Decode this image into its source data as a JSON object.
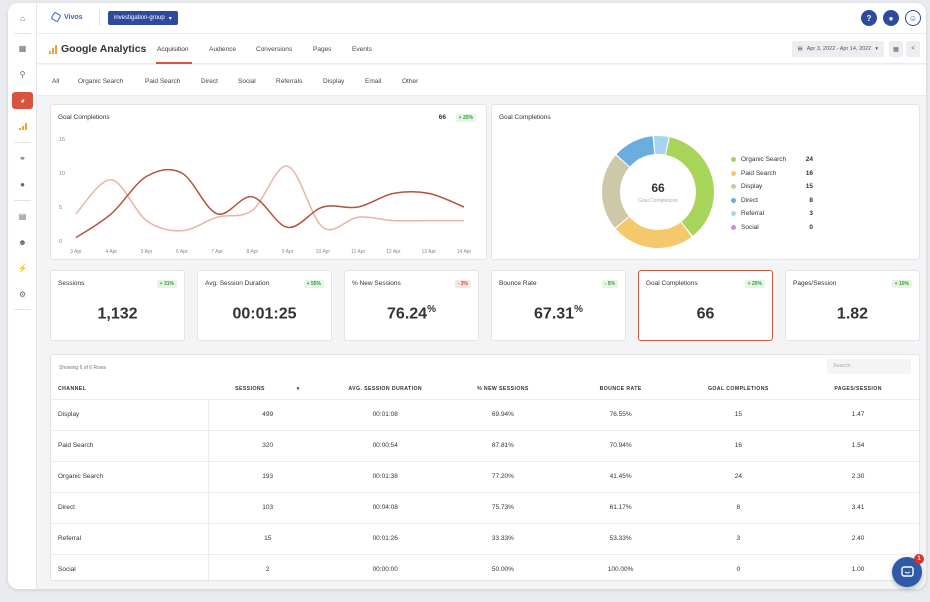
{
  "app": {
    "brand": "Vivos",
    "group": "investigation-group"
  },
  "colors": {
    "accent": "#d9533d",
    "navy": "#2e4a9e",
    "line_dark": "#b5523d",
    "line_light": "#e8b4a6"
  },
  "sidebar": {
    "items": [
      {
        "icon": "home-icon"
      },
      {
        "icon": "grid-icon"
      },
      {
        "icon": "search-icon"
      },
      {
        "icon": "pie-chart-icon",
        "active": true
      },
      {
        "icon": "bar-chart-icon"
      },
      {
        "icon": "link-icon"
      },
      {
        "icon": "location-icon"
      },
      {
        "icon": "document-icon"
      },
      {
        "icon": "user-icon"
      },
      {
        "icon": "plug-icon"
      },
      {
        "icon": "gear-icon"
      }
    ]
  },
  "header": {
    "title": "Google Analytics",
    "tabs": [
      "Acquisition",
      "Audience",
      "Conversions",
      "Pages",
      "Events"
    ],
    "active_tab": "Acquisition",
    "date_range": "Apr 3, 2022 - Apr 14, 2022"
  },
  "subtabs": [
    "All",
    "Organic Search",
    "Paid Search",
    "Direct",
    "Social",
    "Referrals",
    "Display",
    "Email",
    "Other"
  ],
  "line_card": {
    "title": "Goal Completions",
    "value": "66",
    "change": "+ 25%"
  },
  "chart_data": [
    {
      "type": "line",
      "x": [
        "3 Apr",
        "4 Apr",
        "5 Apr",
        "6 Apr",
        "7 Apr",
        "8 Apr",
        "9 Apr",
        "10 Apr",
        "11 Apr",
        "12 Apr",
        "13 Apr",
        "14 Apr"
      ],
      "y_ticks": [
        "0",
        "5",
        "10",
        "15"
      ],
      "ylim": [
        0,
        15
      ],
      "series": [
        {
          "values": [
            0.5,
            4,
            9.5,
            10,
            4,
            6.5,
            2,
            5,
            5,
            7,
            7,
            5
          ]
        },
        {
          "values": [
            4,
            9,
            3,
            1.5,
            3.5,
            4.5,
            11,
            2,
            3.5,
            3,
            3,
            3
          ]
        }
      ]
    },
    {
      "type": "pie",
      "title": "Goal Completions",
      "center_value": "66",
      "center_label": "Goal Completions",
      "labels": [
        "Organic Search",
        "Paid Search",
        "Display",
        "Direct",
        "Referral",
        "Social"
      ],
      "values": [
        24,
        16,
        15,
        8,
        3,
        0
      ],
      "colors": [
        "#a8d45a",
        "#f5c86b",
        "#ccc8a8",
        "#6aaee0",
        "#a8d4f2",
        "#d98ad4"
      ]
    }
  ],
  "stats": [
    {
      "label": "Sessions",
      "value": "1,132",
      "suffix": "",
      "change": "+ 31%",
      "dir": "up"
    },
    {
      "label": "Avg. Session Duration",
      "value": "00:01:25",
      "suffix": "",
      "change": "+ 55%",
      "dir": "up"
    },
    {
      "label": "% New Sessions",
      "value": "76.24",
      "suffix": "%",
      "change": "- 3%",
      "dir": "down"
    },
    {
      "label": "Bounce Rate",
      "value": "67.31",
      "suffix": "%",
      "change": "- 5%",
      "dir": "up"
    },
    {
      "label": "Goal Completions",
      "value": "66",
      "suffix": "",
      "change": "+ 25%",
      "dir": "up"
    },
    {
      "label": "Pages/Session",
      "value": "1.82",
      "suffix": "",
      "change": "+ 10%",
      "dir": "up"
    }
  ],
  "table": {
    "showing": "Showing 6 of 6 Rows",
    "search_placeholder": "Search",
    "columns": [
      "CHANNEL",
      "SESSIONS",
      "AVG. SESSION DURATION",
      "% NEW SESSIONS",
      "BOUNCE RATE",
      "GOAL COMPLETIONS",
      "PAGES/SESSION"
    ],
    "rows": [
      [
        "Display",
        "499",
        "00:01:08",
        "69.94%",
        "76.55%",
        "15",
        "1.47"
      ],
      [
        "Paid Search",
        "320",
        "00:00:54",
        "87.81%",
        "70.94%",
        "16",
        "1.54"
      ],
      [
        "Organic Search",
        "193",
        "00:01:38",
        "77.20%",
        "41.45%",
        "24",
        "2.30"
      ],
      [
        "Direct",
        "103",
        "00:04:08",
        "75.73%",
        "61.17%",
        "8",
        "3.41"
      ],
      [
        "Referral",
        "15",
        "00:01:26",
        "33.33%",
        "53.33%",
        "3",
        "2.40"
      ],
      [
        "Social",
        "2",
        "00:00:00",
        "50.00%",
        "100.00%",
        "0",
        "1.00"
      ]
    ]
  },
  "chat": {
    "badge": "1"
  }
}
